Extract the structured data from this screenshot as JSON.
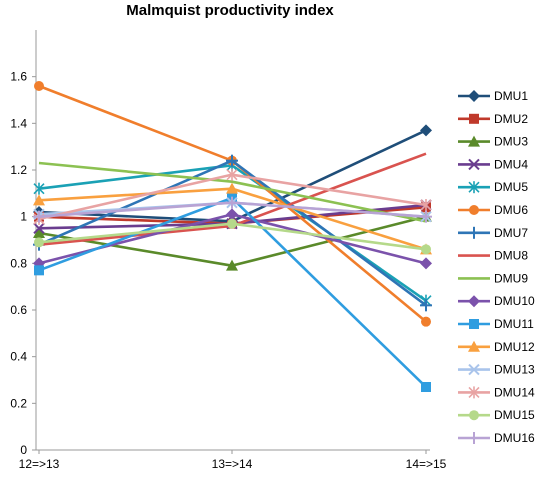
{
  "chart_data": {
    "type": "line",
    "title": "Malmquist productivity index",
    "xlabel": "",
    "ylabel": "",
    "categories": [
      "12=>13",
      "13=>14",
      "14=>15"
    ],
    "ylim": [
      0,
      1.8
    ],
    "yticks": [
      "0",
      "0.2",
      "0.4",
      "0.6",
      "0.8",
      "1",
      "1.2",
      "1.4",
      "1.6"
    ],
    "grid": false,
    "legend": "right",
    "series": [
      {
        "name": "DMU1",
        "values": [
          1.02,
          0.98,
          1.37
        ],
        "color": "#1f4e79",
        "marker": "diamond"
      },
      {
        "name": "DMU2",
        "values": [
          1.0,
          0.97,
          1.04
        ],
        "color": "#c0392b",
        "marker": "square"
      },
      {
        "name": "DMU3",
        "values": [
          0.93,
          0.79,
          1.0
        ],
        "color": "#5a8a2a",
        "marker": "triangle"
      },
      {
        "name": "DMU4",
        "values": [
          0.95,
          0.97,
          1.05
        ],
        "color": "#6a3d8f",
        "marker": "x"
      },
      {
        "name": "DMU5",
        "values": [
          1.12,
          1.22,
          0.64
        ],
        "color": "#1aa1b5",
        "marker": "star"
      },
      {
        "name": "DMU6",
        "values": [
          1.56,
          1.24,
          0.55
        ],
        "color": "#f07e2c",
        "marker": "circle"
      },
      {
        "name": "DMU7",
        "values": [
          0.88,
          1.24,
          0.62
        ],
        "color": "#2e75b6",
        "marker": "plus"
      },
      {
        "name": "DMU8",
        "values": [
          0.88,
          0.96,
          1.27
        ],
        "color": "#d9534f",
        "marker": "none"
      },
      {
        "name": "DMU9",
        "values": [
          1.23,
          1.15,
          0.98
        ],
        "color": "#8cc152",
        "marker": "none"
      },
      {
        "name": "DMU10",
        "values": [
          0.8,
          1.01,
          0.8
        ],
        "color": "#7b52ab",
        "marker": "diamond"
      },
      {
        "name": "DMU11",
        "values": [
          0.77,
          1.08,
          0.27
        ],
        "color": "#2f9de0",
        "marker": "square"
      },
      {
        "name": "DMU12",
        "values": [
          1.07,
          1.12,
          0.86
        ],
        "color": "#f9a03f",
        "marker": "triangle"
      },
      {
        "name": "DMU13",
        "values": [
          1.01,
          1.06,
          1.0
        ],
        "color": "#a9c4eb",
        "marker": "x"
      },
      {
        "name": "DMU14",
        "values": [
          0.99,
          1.18,
          1.05
        ],
        "color": "#e8a3a3",
        "marker": "star"
      },
      {
        "name": "DMU15",
        "values": [
          0.89,
          0.97,
          0.86
        ],
        "color": "#b5d98a",
        "marker": "circle"
      },
      {
        "name": "DMU16",
        "values": [
          1.0,
          1.06,
          1.0
        ],
        "color": "#b8a3d4",
        "marker": "plus"
      }
    ]
  }
}
